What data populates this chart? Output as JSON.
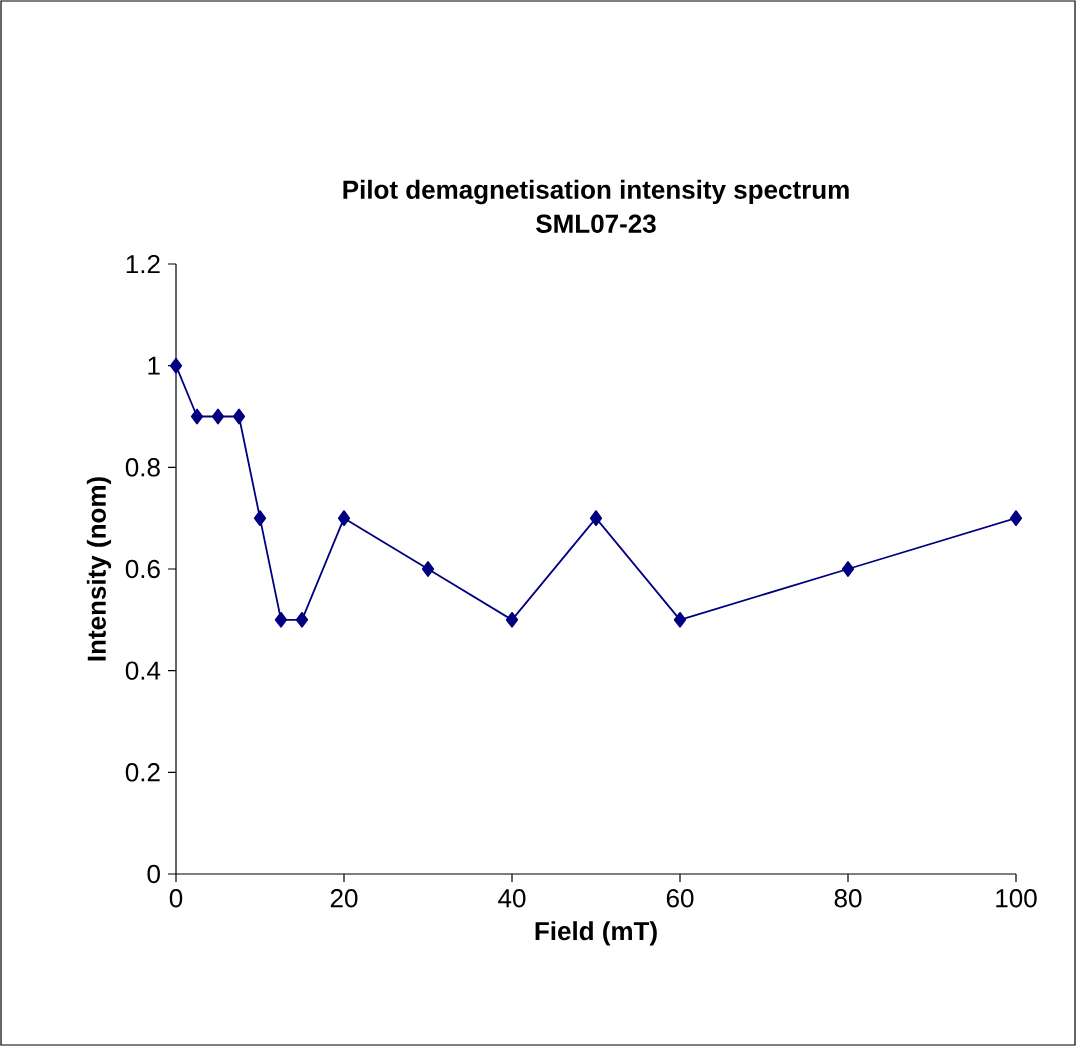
{
  "chart_data": {
    "type": "line",
    "title": "Pilot demagnetisation intensity spectrum",
    "subtitle": "SML07-23",
    "xlabel": "Field (mT)",
    "ylabel": "Intensity (nom)",
    "x": [
      0,
      2.5,
      5,
      7.5,
      10,
      12.5,
      15,
      20,
      30,
      40,
      50,
      60,
      80,
      100
    ],
    "series": [
      {
        "color": "#000080",
        "values": [
          1,
          0.9,
          0.9,
          0.9,
          0.7,
          0.5,
          0.5,
          0.7,
          0.6,
          0.5,
          0.7,
          0.5,
          0.6,
          0.7
        ]
      }
    ],
    "xlim": [
      0,
      100
    ],
    "ylim": [
      0,
      1.2
    ],
    "xticks": [
      0,
      20,
      40,
      60,
      80,
      100
    ],
    "yticks": [
      0,
      0.2,
      0.4,
      0.6,
      0.8,
      1,
      1.2
    ],
    "marker": "diamond",
    "line_style": "solid"
  }
}
